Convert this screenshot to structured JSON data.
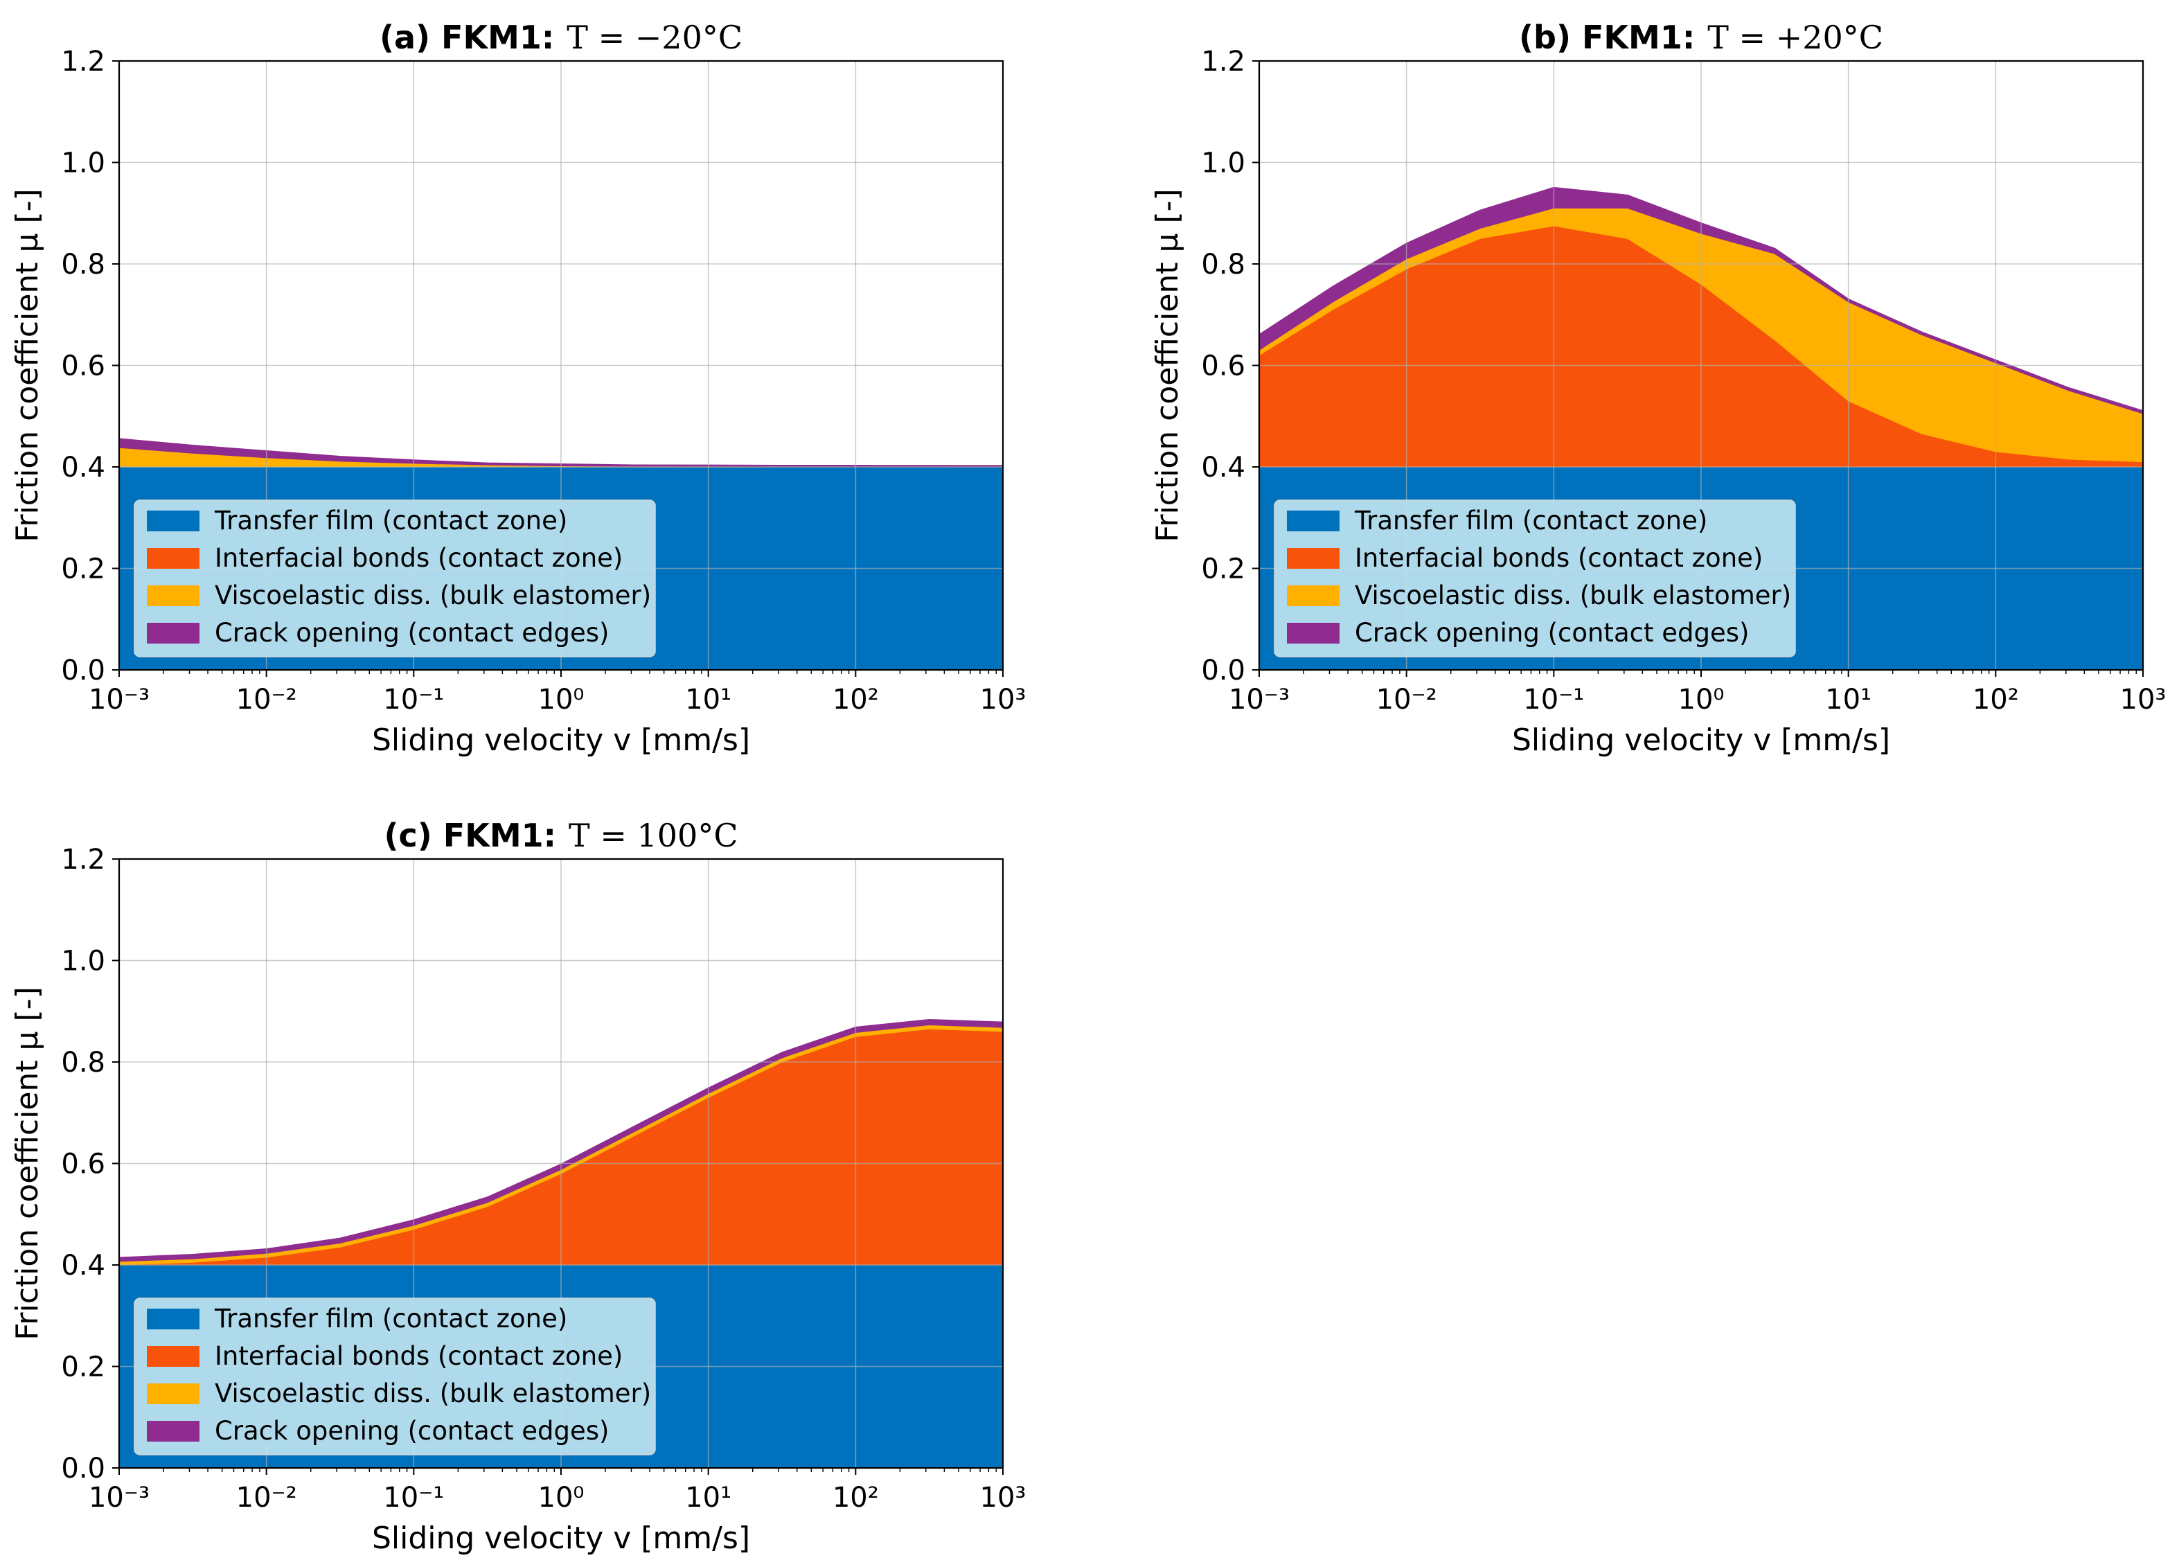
{
  "colors": {
    "transfer_film": "#0072BD",
    "interfacial_bonds": "#F7530A",
    "viscoelastic": "#FFB000",
    "crack_opening": "#8E2C90",
    "legend_bg": "#BEE3F0"
  },
  "legend_items": [
    "Transfer film (contact zone)",
    "Interfacial bonds (contact zone)",
    "Viscoelastic diss. (bulk elastomer)",
    "Crack opening (contact edges)"
  ],
  "chart_data": [
    {
      "type": "area",
      "stacked": true,
      "title_prefix": "(a) FKM1:",
      "title_formula": "T = −20°C",
      "xlabel": "Sliding velocity v [mm/s]",
      "ylabel": "Friction coefficient μ [-]",
      "xscale": "log",
      "xlim": [
        0.001,
        1000
      ],
      "ylim": [
        0,
        1.2
      ],
      "x_ticks": [
        "10⁻³",
        "10⁻²",
        "10⁻¹",
        "10⁰",
        "10¹",
        "10²",
        "10³"
      ],
      "y_ticks": [
        "0.0",
        "0.2",
        "0.4",
        "0.6",
        "0.8",
        "1.0",
        "1.2"
      ],
      "grid": true,
      "legend_position": "lower-left",
      "x": [
        0.001,
        0.00316,
        0.01,
        0.0316,
        0.1,
        0.316,
        1,
        3.16,
        10,
        31.6,
        100,
        316,
        1000
      ],
      "series": [
        {
          "name": "Transfer film (contact zone)",
          "values": [
            0.4,
            0.4,
            0.4,
            0.4,
            0.4,
            0.4,
            0.4,
            0.4,
            0.4,
            0.4,
            0.4,
            0.4,
            0.4
          ]
        },
        {
          "name": "Interfacial bonds (contact zone)",
          "values": [
            0.0,
            0.0,
            0.0,
            0.0,
            0.0,
            0.0,
            0.0,
            0.0,
            0.0,
            0.0,
            0.0,
            0.0,
            0.0
          ]
        },
        {
          "name": "Viscoelastic diss. (bulk elastomer)",
          "values": [
            0.038,
            0.027,
            0.018,
            0.011,
            0.007,
            0.004,
            0.002,
            0.001,
            0.0008,
            0.0005,
            0.0003,
            0.0002,
            0.0001
          ]
        },
        {
          "name": "Crack opening (contact edges)",
          "values": [
            0.017,
            0.015,
            0.013,
            0.009,
            0.006,
            0.003,
            0.003,
            0.002,
            0.002,
            0.002,
            0.002,
            0.002,
            0.002
          ]
        }
      ]
    },
    {
      "type": "area",
      "stacked": true,
      "title_prefix": "(b) FKM1:",
      "title_formula": "T = +20°C",
      "xlabel": "Sliding velocity v [mm/s]",
      "ylabel": "Friction coefficient μ [-]",
      "xscale": "log",
      "xlim": [
        0.001,
        1000
      ],
      "ylim": [
        0,
        1.2
      ],
      "x_ticks": [
        "10⁻³",
        "10⁻²",
        "10⁻¹",
        "10⁰",
        "10¹",
        "10²",
        "10³"
      ],
      "y_ticks": [
        "0.0",
        "0.2",
        "0.4",
        "0.6",
        "0.8",
        "1.0",
        "1.2"
      ],
      "grid": true,
      "legend_position": "lower-left",
      "x": [
        0.001,
        0.00316,
        0.01,
        0.0316,
        0.1,
        0.316,
        1,
        3.16,
        10,
        31.6,
        100,
        316,
        1000
      ],
      "series": [
        {
          "name": "Transfer film (contact zone)",
          "values": [
            0.4,
            0.4,
            0.4,
            0.4,
            0.4,
            0.4,
            0.4,
            0.4,
            0.4,
            0.4,
            0.4,
            0.4,
            0.4
          ]
        },
        {
          "name": "Interfacial bonds (contact zone)",
          "values": [
            0.22,
            0.31,
            0.39,
            0.45,
            0.475,
            0.45,
            0.36,
            0.25,
            0.13,
            0.065,
            0.03,
            0.015,
            0.01
          ]
        },
        {
          "name": "Viscoelastic diss. (bulk elastomer)",
          "values": [
            0.01,
            0.015,
            0.02,
            0.02,
            0.035,
            0.06,
            0.1,
            0.17,
            0.195,
            0.195,
            0.175,
            0.135,
            0.095
          ]
        },
        {
          "name": "Crack opening (contact edges)",
          "values": [
            0.03,
            0.03,
            0.03,
            0.035,
            0.04,
            0.025,
            0.02,
            0.01,
            0.005,
            0.005,
            0.005,
            0.005,
            0.005
          ]
        }
      ]
    },
    {
      "type": "area",
      "stacked": true,
      "title_prefix": "(c) FKM1:",
      "title_formula": "T = 100°C",
      "xlabel": "Sliding velocity v [mm/s]",
      "ylabel": "Friction coefficient μ [-]",
      "xscale": "log",
      "xlim": [
        0.001,
        1000
      ],
      "ylim": [
        0,
        1.2
      ],
      "x_ticks": [
        "10⁻³",
        "10⁻²",
        "10⁻¹",
        "10⁰",
        "10¹",
        "10²",
        "10³"
      ],
      "y_ticks": [
        "0.0",
        "0.2",
        "0.4",
        "0.6",
        "0.8",
        "1.0",
        "1.2"
      ],
      "grid": true,
      "legend_position": "lower-left",
      "x": [
        0.001,
        0.00316,
        0.01,
        0.0316,
        0.1,
        0.316,
        1,
        3.16,
        10,
        31.6,
        100,
        316,
        1000
      ],
      "series": [
        {
          "name": "Transfer film (contact zone)",
          "values": [
            0.4,
            0.4,
            0.4,
            0.4,
            0.4,
            0.4,
            0.4,
            0.4,
            0.4,
            0.4,
            0.4,
            0.4,
            0.4
          ]
        },
        {
          "name": "Interfacial bonds (contact zone)",
          "values": [
            0.0,
            0.005,
            0.015,
            0.035,
            0.07,
            0.115,
            0.18,
            0.255,
            0.33,
            0.4,
            0.45,
            0.465,
            0.46
          ]
        },
        {
          "name": "Viscoelastic diss. (bulk elastomer)",
          "values": [
            0.007,
            0.007,
            0.008,
            0.008,
            0.008,
            0.008,
            0.008,
            0.008,
            0.008,
            0.008,
            0.008,
            0.008,
            0.008
          ]
        },
        {
          "name": "Crack opening (contact edges)",
          "values": [
            0.007,
            0.008,
            0.008,
            0.009,
            0.01,
            0.01,
            0.01,
            0.01,
            0.01,
            0.01,
            0.01,
            0.01,
            0.01
          ]
        }
      ]
    }
  ]
}
